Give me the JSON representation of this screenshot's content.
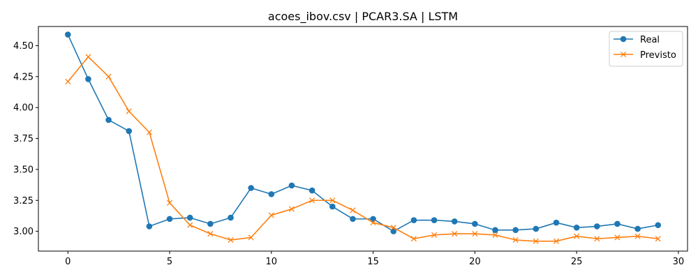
{
  "chart_data": {
    "type": "line",
    "title": "acoes_ibov.csv | PCAR3.SA | LSTM",
    "xlabel": "",
    "ylabel": "",
    "xlim": [
      -1.45,
      30.45
    ],
    "ylim": [
      2.84,
      4.655
    ],
    "xticks": [
      0,
      5,
      10,
      15,
      20,
      25,
      30
    ],
    "yticks": [
      3.0,
      3.25,
      3.5,
      3.75,
      4.0,
      4.25,
      4.5
    ],
    "ytick_labels": [
      "3.00",
      "3.25",
      "3.50",
      "3.75",
      "4.00",
      "4.25",
      "4.50"
    ],
    "grid": false,
    "legend_position": "top-right",
    "x": [
      0,
      1,
      2,
      3,
      4,
      5,
      6,
      7,
      8,
      9,
      10,
      11,
      12,
      13,
      14,
      15,
      16,
      17,
      18,
      19,
      20,
      21,
      22,
      23,
      24,
      25,
      26,
      27,
      28,
      29
    ],
    "series": [
      {
        "name": "Real",
        "color": "#1f77b4",
        "marker": "circle",
        "values": [
          4.59,
          4.23,
          3.9,
          3.81,
          3.04,
          3.1,
          3.11,
          3.06,
          3.11,
          3.35,
          3.3,
          3.37,
          3.33,
          3.2,
          3.1,
          3.1,
          3.0,
          3.09,
          3.09,
          3.08,
          3.06,
          3.01,
          3.01,
          3.02,
          3.07,
          3.03,
          3.04,
          3.06,
          3.02,
          3.05
        ]
      },
      {
        "name": "Previsto",
        "color": "#ff7f0e",
        "marker": "x",
        "values": [
          4.21,
          4.41,
          4.25,
          3.97,
          3.8,
          3.23,
          3.05,
          2.98,
          2.93,
          2.95,
          3.13,
          3.18,
          3.25,
          3.25,
          3.17,
          3.07,
          3.03,
          2.94,
          2.97,
          2.98,
          2.98,
          2.97,
          2.93,
          2.92,
          2.92,
          2.96,
          2.94,
          2.95,
          2.96,
          2.94
        ]
      }
    ]
  }
}
